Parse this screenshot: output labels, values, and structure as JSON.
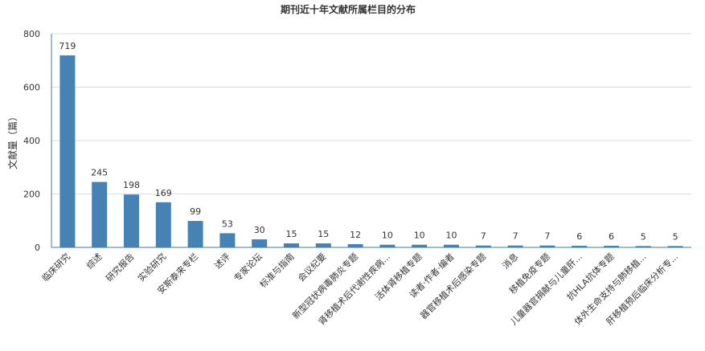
{
  "chart_data": {
    "type": "bar",
    "title": "期刊近十年文献所属栏目的分布",
    "xlabel": "",
    "ylabel": "文献量（篇）",
    "ylim": [
      0,
      800
    ],
    "yticks": [
      0,
      200,
      400,
      600,
      800
    ],
    "grid": true,
    "bar_color": "#4682b4",
    "categories": [
      "临床研究",
      "综述",
      "研究报告",
      "实验研究",
      "安斯泰来专栏",
      "述评",
      "专家论坛",
      "标准与指南",
      "会议纪要",
      "新型冠状病毒肺炎专题",
      "肾移植术后代谢性疾病...",
      "活体肾移植专题",
      "读者·作者·编者",
      "器官移植术后感染专题",
      "消息",
      "移植免疫专题",
      "儿童器官捐献与儿童肝...",
      "抗HLA抗体专题",
      "体外生命支持与肺移植...",
      "肝移植预后临床分析专..."
    ],
    "values": [
      719,
      245,
      198,
      169,
      99,
      53,
      30,
      15,
      15,
      12,
      10,
      10,
      10,
      7,
      7,
      7,
      6,
      6,
      5,
      5
    ]
  }
}
